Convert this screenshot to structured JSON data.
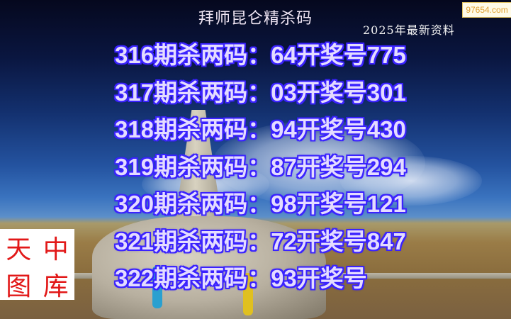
{
  "title": "拜师昆仑精杀码",
  "subtitle": "2025年最新资料",
  "site_badge": "97654.com",
  "rows": [
    {
      "period": "316",
      "label": "期杀两码：",
      "code": "64",
      "result_label": "开奖号",
      "result": "775"
    },
    {
      "period": "317",
      "label": "期杀两码：",
      "code": "03",
      "result_label": "开奖号",
      "result": "301"
    },
    {
      "period": "318",
      "label": "期杀两码：",
      "code": "94",
      "result_label": "开奖号",
      "result": "430"
    },
    {
      "period": "319",
      "label": "期杀两码：",
      "code": "87",
      "result_label": "开奖号",
      "result": "294"
    },
    {
      "period": "320",
      "label": "期杀两码：",
      "code": "98",
      "result_label": "开奖号",
      "result": "121"
    },
    {
      "period": "321",
      "label": "期杀两码：",
      "code": "72",
      "result_label": "开奖号",
      "result": "847"
    },
    {
      "period": "322",
      "label": "期杀两码：",
      "code": "93",
      "result_label": "开奖号",
      "result": ""
    }
  ],
  "watermark": [
    "天",
    "中",
    "图",
    "库"
  ],
  "colors": {
    "text_fill": "#e4dcff",
    "text_outline": "#3a22ff",
    "watermark": "#e21818"
  }
}
